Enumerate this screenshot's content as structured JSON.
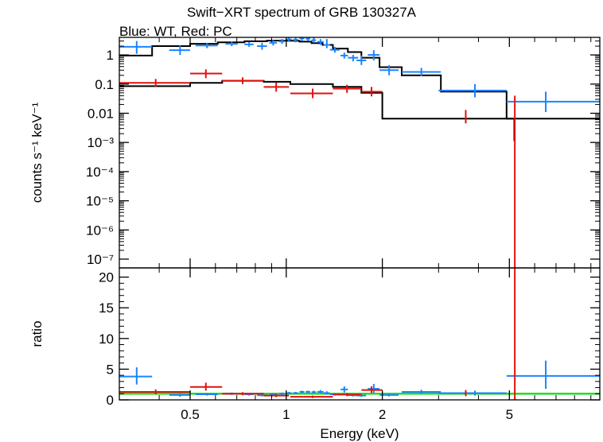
{
  "chart_data": [
    {
      "type": "scatter",
      "panel": "spectrum",
      "title": "Swift−XRT spectrum of GRB 130327A",
      "subtitle": "Blue: WT, Red: PC",
      "ylabel": "counts s⁻¹ keV⁻¹",
      "xscale": "log",
      "yscale": "log",
      "xlim": [
        0.3,
        9.6
      ],
      "ylim": [
        5e-08,
        4
      ],
      "y_ticks": [
        {
          "v": 1,
          "label": "1"
        },
        {
          "v": 0.1,
          "label": "0.1"
        },
        {
          "v": 0.01,
          "label": "0.01"
        },
        {
          "v": 0.001,
          "label": "10⁻³"
        },
        {
          "v": 0.0001,
          "label": "10⁻⁴"
        },
        {
          "v": 1e-05,
          "label": "10⁻⁵"
        },
        {
          "v": 1e-06,
          "label": "10⁻⁶"
        },
        {
          "v": 1e-07,
          "label": "10⁻⁷"
        }
      ],
      "series": [
        {
          "color": "#1a85ff",
          "points": [
            {
              "x": 0.34,
              "xlo": 0.3,
              "xhi": 0.38,
              "y": 1.9,
              "ylo": 1.1,
              "yhi": 3.0
            },
            {
              "x": 0.465,
              "xlo": 0.43,
              "xhi": 0.5,
              "y": 1.45,
              "ylo": 1.0,
              "yhi": 2.1
            },
            {
              "x": 0.565,
              "xlo": 0.52,
              "xhi": 0.61,
              "y": 2.1,
              "ylo": 1.7,
              "yhi": 2.6
            },
            {
              "x": 0.675,
              "xlo": 0.645,
              "xhi": 0.705,
              "y": 2.4,
              "ylo": 2.0,
              "yhi": 2.9
            },
            {
              "x": 0.765,
              "xlo": 0.74,
              "xhi": 0.79,
              "y": 2.3,
              "ylo": 1.9,
              "yhi": 2.8
            },
            {
              "x": 0.84,
              "xlo": 0.81,
              "xhi": 0.87,
              "y": 2.0,
              "ylo": 1.5,
              "yhi": 2.6
            },
            {
              "x": 0.91,
              "xlo": 0.885,
              "xhi": 0.935,
              "y": 2.6,
              "ylo": 2.1,
              "yhi": 3.2
            },
            {
              "x": 0.97,
              "xlo": 0.95,
              "xhi": 0.99,
              "y": 2.9,
              "ylo": 2.4,
              "yhi": 3.5
            },
            {
              "x": 1.02,
              "xlo": 1.0,
              "xhi": 1.04,
              "y": 3.4,
              "ylo": 2.8,
              "yhi": 4.0
            },
            {
              "x": 1.07,
              "xlo": 1.05,
              "xhi": 1.09,
              "y": 3.3,
              "ylo": 2.7,
              "yhi": 4.0
            },
            {
              "x": 1.12,
              "xlo": 1.1,
              "xhi": 1.14,
              "y": 3.7,
              "ylo": 3.0,
              "yhi": 4.0
            },
            {
              "x": 1.17,
              "xlo": 1.15,
              "xhi": 1.19,
              "y": 3.6,
              "ylo": 3.0,
              "yhi": 4.0
            },
            {
              "x": 1.22,
              "xlo": 1.2,
              "xhi": 1.24,
              "y": 3.2,
              "ylo": 2.6,
              "yhi": 3.9
            },
            {
              "x": 1.28,
              "xlo": 1.25,
              "xhi": 1.31,
              "y": 2.8,
              "ylo": 2.2,
              "yhi": 3.5
            },
            {
              "x": 1.34,
              "xlo": 1.31,
              "xhi": 1.37,
              "y": 2.2,
              "ylo": 1.7,
              "yhi": 3.5
            },
            {
              "x": 1.42,
              "xlo": 1.37,
              "xhi": 1.47,
              "y": 1.5,
              "ylo": 1.2,
              "yhi": 1.9
            },
            {
              "x": 1.52,
              "xlo": 1.48,
              "xhi": 1.56,
              "y": 0.95,
              "ylo": 0.75,
              "yhi": 1.2
            },
            {
              "x": 1.62,
              "xlo": 1.56,
              "xhi": 1.68,
              "y": 0.8,
              "ylo": 0.6,
              "yhi": 1.0
            },
            {
              "x": 1.72,
              "xlo": 1.66,
              "xhi": 1.78,
              "y": 0.65,
              "ylo": 0.45,
              "yhi": 0.95
            },
            {
              "x": 1.88,
              "xlo": 1.8,
              "xhi": 1.96,
              "y": 1.0,
              "ylo": 0.65,
              "yhi": 1.45
            },
            {
              "x": 2.1,
              "xlo": 1.96,
              "xhi": 2.25,
              "y": 0.3,
              "ylo": 0.2,
              "yhi": 0.45
            },
            {
              "x": 2.65,
              "xlo": 2.3,
              "xhi": 3.05,
              "y": 0.26,
              "ylo": 0.19,
              "yhi": 0.36
            },
            {
              "x": 3.9,
              "xlo": 3.0,
              "xhi": 4.9,
              "y": 0.06,
              "ylo": 0.035,
              "yhi": 0.1
            },
            {
              "x": 6.5,
              "xlo": 4.9,
              "xhi": 9.6,
              "y": 0.025,
              "ylo": 0.011,
              "yhi": 0.055
            }
          ]
        },
        {
          "color": "#e3110d",
          "points": [
            {
              "x": 0.39,
              "xlo": 0.3,
              "xhi": 0.5,
              "y": 0.11,
              "ylo": 0.08,
              "yhi": 0.15
            },
            {
              "x": 0.56,
              "xlo": 0.5,
              "xhi": 0.63,
              "y": 0.23,
              "ylo": 0.16,
              "yhi": 0.32
            },
            {
              "x": 0.73,
              "xlo": 0.63,
              "xhi": 0.85,
              "y": 0.13,
              "ylo": 0.1,
              "yhi": 0.17
            },
            {
              "x": 0.93,
              "xlo": 0.85,
              "xhi": 1.02,
              "y": 0.08,
              "ylo": 0.055,
              "yhi": 0.115
            },
            {
              "x": 1.21,
              "xlo": 1.03,
              "xhi": 1.4,
              "y": 0.048,
              "ylo": 0.033,
              "yhi": 0.07
            },
            {
              "x": 1.55,
              "xlo": 1.4,
              "xhi": 1.72,
              "y": 0.07,
              "ylo": 0.05,
              "yhi": 0.095
            },
            {
              "x": 1.85,
              "xlo": 1.72,
              "xhi": 2.0,
              "y": 0.055,
              "ylo": 0.038,
              "yhi": 0.08
            },
            {
              "x": 3.65,
              "xlo": 3.63,
              "xhi": 3.67,
              "y": 0.0085,
              "ylo": 0.0045,
              "yhi": 0.013
            },
            {
              "x": 5.2,
              "xlo": 5.18,
              "xhi": 5.22,
              "y": 0.00035,
              "ylo": 5e-08,
              "yhi": 0.04
            }
          ]
        }
      ],
      "models": [
        {
          "name": "WT model",
          "color": "#000000",
          "steps": [
            [
              0.3,
              0.38,
              0.95
            ],
            [
              0.38,
              0.5,
              2.0
            ],
            [
              0.5,
              0.61,
              2.4
            ],
            [
              0.61,
              0.74,
              2.7
            ],
            [
              0.74,
              0.87,
              2.95
            ],
            [
              0.87,
              1.0,
              3.1
            ],
            [
              1.0,
              1.1,
              3.05
            ],
            [
              1.1,
              1.2,
              2.85
            ],
            [
              1.2,
              1.3,
              2.55
            ],
            [
              1.3,
              1.4,
              2.2
            ],
            [
              1.4,
              1.56,
              1.65
            ],
            [
              1.56,
              1.72,
              1.25
            ],
            [
              1.72,
              1.96,
              0.8
            ],
            [
              1.96,
              2.3,
              0.38
            ],
            [
              2.3,
              3.05,
              0.2
            ],
            [
              3.05,
              4.9,
              0.055
            ],
            [
              4.9,
              9.6,
              0.0065
            ]
          ]
        },
        {
          "name": "PC model",
          "color": "#000000",
          "steps": [
            [
              0.3,
              0.5,
              0.085
            ],
            [
              0.5,
              0.63,
              0.11
            ],
            [
              0.63,
              0.85,
              0.13
            ],
            [
              0.85,
              1.03,
              0.12
            ],
            [
              1.03,
              1.4,
              0.1
            ],
            [
              1.4,
              1.72,
              0.08
            ],
            [
              1.72,
              2.0,
              0.05
            ],
            [
              2.0,
              5.18,
              0.0065
            ],
            [
              5.18,
              5.22,
              0.0012
            ]
          ]
        }
      ]
    },
    {
      "type": "scatter",
      "panel": "ratio",
      "xlabel": "Energy (keV)",
      "ylabel": "ratio",
      "xscale": "log",
      "xlim": [
        0.3,
        9.6
      ],
      "ylim": [
        0,
        21.5
      ],
      "x_ticks": [
        {
          "v": 0.5,
          "label": "0.5"
        },
        {
          "v": 1,
          "label": "1"
        },
        {
          "v": 2,
          "label": "2"
        },
        {
          "v": 5,
          "label": "5"
        }
      ],
      "y_ticks": [
        {
          "v": 0,
          "label": "0"
        },
        {
          "v": 5,
          "label": "5"
        },
        {
          "v": 10,
          "label": "10"
        },
        {
          "v": 15,
          "label": "15"
        },
        {
          "v": 20,
          "label": "20"
        }
      ],
      "reference_line": {
        "y": 1,
        "color": "#22dd22"
      },
      "series": [
        {
          "color": "#1a85ff",
          "points": [
            {
              "x": 0.34,
              "xlo": 0.3,
              "xhi": 0.38,
              "y": 3.8,
              "ylo": 2.5,
              "yhi": 5.3
            },
            {
              "x": 0.465,
              "xlo": 0.43,
              "xhi": 0.5,
              "y": 0.8,
              "ylo": 0.5,
              "yhi": 1.1
            },
            {
              "x": 0.565,
              "xlo": 0.52,
              "xhi": 0.61,
              "y": 0.9,
              "ylo": 0.7,
              "yhi": 1.1
            },
            {
              "x": 0.675,
              "xlo": 0.645,
              "xhi": 0.705,
              "y": 1.0,
              "ylo": 0.8,
              "yhi": 1.2
            },
            {
              "x": 0.765,
              "xlo": 0.74,
              "xhi": 0.79,
              "y": 0.9,
              "ylo": 0.7,
              "yhi": 1.1
            },
            {
              "x": 0.84,
              "xlo": 0.81,
              "xhi": 0.87,
              "y": 0.75,
              "ylo": 0.55,
              "yhi": 0.95
            },
            {
              "x": 0.91,
              "xlo": 0.885,
              "xhi": 0.935,
              "y": 0.9,
              "ylo": 0.7,
              "yhi": 1.1
            },
            {
              "x": 0.97,
              "xlo": 0.95,
              "xhi": 0.99,
              "y": 1.0,
              "ylo": 0.8,
              "yhi": 1.2
            },
            {
              "x": 1.02,
              "xlo": 1.0,
              "xhi": 1.04,
              "y": 1.1,
              "ylo": 0.9,
              "yhi": 1.3
            },
            {
              "x": 1.07,
              "xlo": 1.05,
              "xhi": 1.09,
              "y": 1.1,
              "ylo": 0.9,
              "yhi": 1.3
            },
            {
              "x": 1.12,
              "xlo": 1.1,
              "xhi": 1.14,
              "y": 1.3,
              "ylo": 1.1,
              "yhi": 1.5
            },
            {
              "x": 1.17,
              "xlo": 1.15,
              "xhi": 1.19,
              "y": 1.3,
              "ylo": 1.1,
              "yhi": 1.5
            },
            {
              "x": 1.22,
              "xlo": 1.2,
              "xhi": 1.24,
              "y": 1.25,
              "ylo": 1.05,
              "yhi": 1.5
            },
            {
              "x": 1.28,
              "xlo": 1.25,
              "xhi": 1.31,
              "y": 1.3,
              "ylo": 1.05,
              "yhi": 1.6
            },
            {
              "x": 1.34,
              "xlo": 1.31,
              "xhi": 1.37,
              "y": 1.1,
              "ylo": 0.85,
              "yhi": 1.4
            },
            {
              "x": 1.42,
              "xlo": 1.37,
              "xhi": 1.47,
              "y": 0.9,
              "ylo": 0.7,
              "yhi": 1.1
            },
            {
              "x": 1.52,
              "xlo": 1.48,
              "xhi": 1.56,
              "y": 1.7,
              "ylo": 1.2,
              "yhi": 2.2
            },
            {
              "x": 1.62,
              "xlo": 1.56,
              "xhi": 1.68,
              "y": 0.75,
              "ylo": 0.55,
              "yhi": 0.95
            },
            {
              "x": 1.72,
              "xlo": 1.66,
              "xhi": 1.78,
              "y": 0.7,
              "ylo": 0.5,
              "yhi": 0.9
            },
            {
              "x": 1.88,
              "xlo": 1.8,
              "xhi": 1.96,
              "y": 1.8,
              "ylo": 1.1,
              "yhi": 2.6
            },
            {
              "x": 2.1,
              "xlo": 1.96,
              "xhi": 2.25,
              "y": 0.8,
              "ylo": 0.55,
              "yhi": 1.05
            },
            {
              "x": 2.65,
              "xlo": 2.3,
              "xhi": 3.05,
              "y": 1.3,
              "ylo": 0.95,
              "yhi": 1.65
            },
            {
              "x": 3.9,
              "xlo": 3.0,
              "xhi": 4.9,
              "y": 1.1,
              "ylo": 0.7,
              "yhi": 1.5
            },
            {
              "x": 6.5,
              "xlo": 4.9,
              "xhi": 9.6,
              "y": 3.9,
              "ylo": 1.8,
              "yhi": 6.4
            }
          ]
        },
        {
          "color": "#e3110d",
          "points": [
            {
              "x": 0.39,
              "xlo": 0.3,
              "xhi": 0.5,
              "y": 1.3,
              "ylo": 0.9,
              "yhi": 1.7
            },
            {
              "x": 0.56,
              "xlo": 0.5,
              "xhi": 0.63,
              "y": 2.1,
              "ylo": 1.5,
              "yhi": 2.8
            },
            {
              "x": 0.73,
              "xlo": 0.63,
              "xhi": 0.85,
              "y": 1.0,
              "ylo": 0.75,
              "yhi": 1.25
            },
            {
              "x": 0.93,
              "xlo": 0.85,
              "xhi": 1.02,
              "y": 0.7,
              "ylo": 0.45,
              "yhi": 0.95
            },
            {
              "x": 1.21,
              "xlo": 1.03,
              "xhi": 1.4,
              "y": 0.5,
              "ylo": 0.3,
              "yhi": 0.7
            },
            {
              "x": 1.55,
              "xlo": 1.4,
              "xhi": 1.72,
              "y": 0.85,
              "ylo": 0.6,
              "yhi": 1.1
            },
            {
              "x": 1.85,
              "xlo": 1.72,
              "xhi": 2.0,
              "y": 1.6,
              "ylo": 1.1,
              "yhi": 2.2
            },
            {
              "x": 3.65,
              "xlo": 3.63,
              "xhi": 3.67,
              "y": 1.1,
              "ylo": 0.6,
              "yhi": 1.6
            },
            {
              "x": 5.2,
              "xlo": 5.18,
              "xhi": 5.22,
              "y": 0.3,
              "ylo": 0.0,
              "yhi": 21.5
            }
          ]
        }
      ]
    }
  ]
}
